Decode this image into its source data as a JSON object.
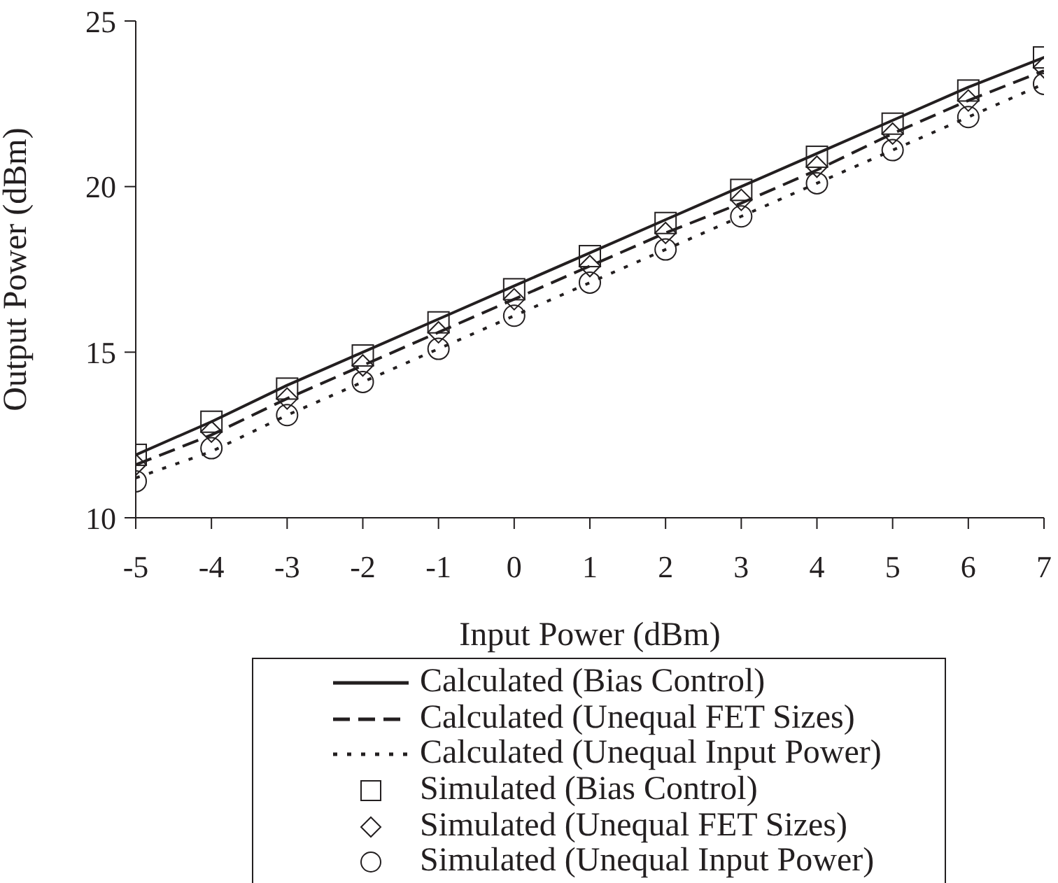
{
  "chart_data": {
    "type": "line",
    "xlabel": "Input Power (dBm)",
    "ylabel": "Output Power (dBm)",
    "x": [
      -5,
      -4,
      -3,
      -2,
      -1,
      0,
      1,
      2,
      3,
      4,
      5,
      6,
      7
    ],
    "xlim": [
      -5,
      7
    ],
    "xticks": [
      -5,
      -4,
      -3,
      -2,
      -1,
      0,
      1,
      2,
      3,
      4,
      5,
      6,
      7
    ],
    "ylim": [
      10,
      25
    ],
    "yticks": [
      10,
      15,
      20,
      25
    ],
    "grid": false,
    "legend": "bottom",
    "series": [
      {
        "name": "Calculated (Bias Control)",
        "color": "#231f20",
        "line_style": "solid",
        "marker": "none",
        "values": [
          11.9,
          12.9,
          14.0,
          15.0,
          16.0,
          17.0,
          18.0,
          19.0,
          20.0,
          21.0,
          22.0,
          23.0,
          23.9
        ]
      },
      {
        "name": "Calculated (Unequal FET Sizes)",
        "color": "#231f20",
        "line_style": "dashed",
        "marker": "none",
        "values": [
          11.6,
          12.5,
          13.6,
          14.6,
          15.6,
          16.6,
          17.6,
          18.6,
          19.5,
          20.5,
          21.6,
          22.6,
          23.5
        ]
      },
      {
        "name": "Calculated (Unequal Input Power)",
        "color": "#231f20",
        "line_style": "dotted",
        "marker": "none",
        "values": [
          11.2,
          12.0,
          13.1,
          14.1,
          15.1,
          16.1,
          17.1,
          18.1,
          19.1,
          20.1,
          21.1,
          22.1,
          23.1
        ]
      },
      {
        "name": "Simulated (Bias Control)",
        "type": "scatter",
        "color": "#231f20",
        "marker": "square",
        "values": [
          11.9,
          12.9,
          13.9,
          14.9,
          15.9,
          16.9,
          17.9,
          18.9,
          19.9,
          20.9,
          21.9,
          22.9,
          23.9
        ]
      },
      {
        "name": "Simulated (Unequal FET Sizes)",
        "type": "scatter",
        "color": "#231f20",
        "marker": "diamond",
        "values": [
          11.6,
          12.6,
          13.6,
          14.6,
          15.6,
          16.6,
          17.6,
          18.6,
          19.6,
          20.6,
          21.6,
          22.6,
          23.6
        ]
      },
      {
        "name": "Simulated (Unequal Input Power)",
        "type": "scatter",
        "color": "#231f20",
        "marker": "circle",
        "values": [
          11.1,
          12.1,
          13.1,
          14.1,
          15.1,
          16.1,
          17.1,
          18.1,
          19.1,
          20.1,
          21.1,
          22.1,
          23.1
        ]
      }
    ]
  }
}
